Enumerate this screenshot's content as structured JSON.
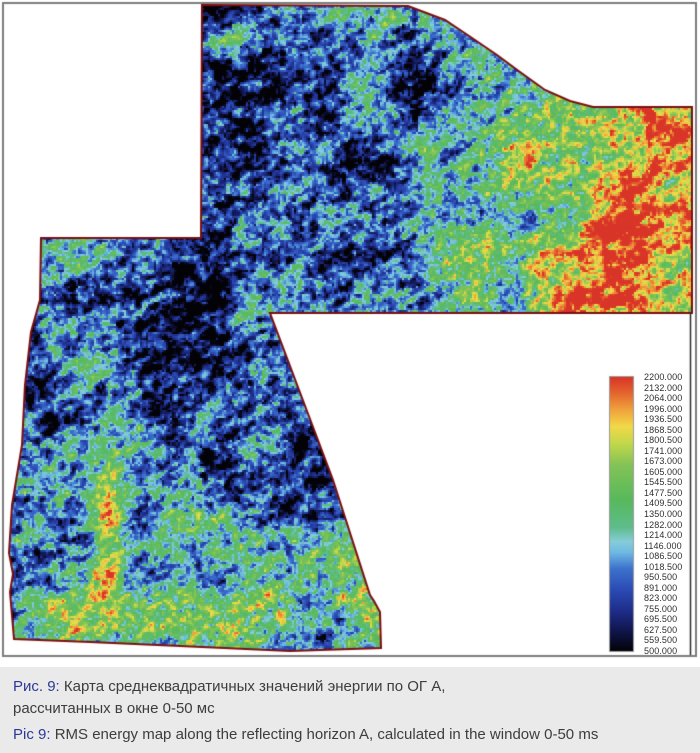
{
  "figure": {
    "frame_color": "#7d7d7d",
    "map_border_color": "#7a0f10",
    "background": "#ffffff"
  },
  "caption": {
    "panel_bg": "#eaeaea",
    "accent_color": "#2b3a96",
    "text_color": "#3d3d3d",
    "ru_label": "Рис. 9:",
    "ru_line1": "Карта среднеквадратичных значений энергии по ОГ А,",
    "ru_line2": "рассчитанных в окне 0-50 мс",
    "en_label": "Pic 9:",
    "en_text": "RMS energy map along the reflecting horizon A, calculated in the window 0-50 ms"
  },
  "chart_data": {
    "type": "heatmap",
    "title": "RMS energy map along the reflecting horizon A, calculated in the window 0-50 ms",
    "title_ru": "Карта среднеквадратичных значений энергии по ОГ А, рассчитанных в окне 0-50 мс",
    "value_range": [
      500,
      2200
    ],
    "legend_position": "right",
    "colorbar": {
      "tick_labels": [
        "2200.000",
        "2132.000",
        "2064.000",
        "1996.000",
        "1936.500",
        "1868.500",
        "1800.500",
        "1741.000",
        "1673.000",
        "1605.000",
        "1545.500",
        "1477.500",
        "1409.500",
        "1350.000",
        "1282.000",
        "1214.000",
        "1146.000",
        "1086.500",
        "1018.500",
        "950.500",
        "891.000",
        "823.000",
        "755.000",
        "695.500",
        "627.500",
        "559.500",
        "500.000"
      ],
      "gradient_top_to_bottom": [
        {
          "pos": "0.00",
          "color": "#d93428"
        },
        {
          "pos": "0.06",
          "color": "#e4662f"
        },
        {
          "pos": "0.12",
          "color": "#f0a33c"
        },
        {
          "pos": "0.18",
          "color": "#f2d848"
        },
        {
          "pos": "0.24",
          "color": "#c4d94b"
        },
        {
          "pos": "0.32",
          "color": "#84c356"
        },
        {
          "pos": "0.45",
          "color": "#57b95c"
        },
        {
          "pos": "0.55",
          "color": "#5fbd8d"
        },
        {
          "pos": "0.60",
          "color": "#86cdd8"
        },
        {
          "pos": "0.64",
          "color": "#6fb9e4"
        },
        {
          "pos": "0.70",
          "color": "#3c72cc"
        },
        {
          "pos": "0.78",
          "color": "#2b49b4"
        },
        {
          "pos": "0.86",
          "color": "#1d2b85"
        },
        {
          "pos": "0.94",
          "color": "#0e1240"
        },
        {
          "pos": "1.00",
          "color": "#030307"
        }
      ]
    },
    "high_value_color": "#d93428",
    "low_value_color": "#030307",
    "notes": "Irregular L-shaped survey polygon. Field is predominantly blue/navy with green mottling; large red high-energy zones occupy the eastern block (right of x≈450, 110–310 px), a red blob sits at the north-west corner of the upper block, and a narrow vertical red streak crosses the south-west lobe (x≈100–125, y≈460–640)."
  }
}
